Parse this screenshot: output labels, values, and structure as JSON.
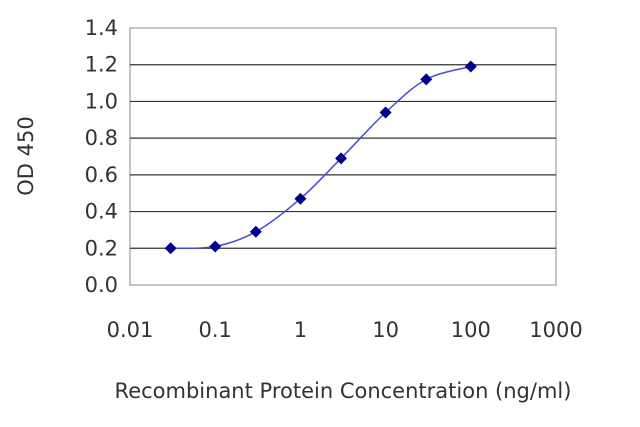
{
  "chart_data": {
    "type": "line",
    "title": "",
    "xlabel": "Recombinant Protein Concentration (ng/ml)",
    "ylabel": "OD 450",
    "x_scale": "log",
    "xlim": [
      0.01,
      1000
    ],
    "ylim": [
      0.0,
      1.4
    ],
    "x_ticks": [
      "0.01",
      "0.1",
      "1",
      "10",
      "100",
      "1000"
    ],
    "y_ticks": [
      "0.0",
      "0.2",
      "0.4",
      "0.6",
      "0.8",
      "1.0",
      "1.2",
      "1.4"
    ],
    "grid": "horizontal",
    "legend": "none",
    "series": [
      {
        "color": "#00008b",
        "marker": "diamond",
        "x": [
          0.03,
          0.1,
          0.3,
          1,
          3,
          10,
          30,
          100
        ],
        "y": [
          0.2,
          0.21,
          0.29,
          0.47,
          0.69,
          0.94,
          1.12,
          1.19
        ]
      }
    ]
  }
}
